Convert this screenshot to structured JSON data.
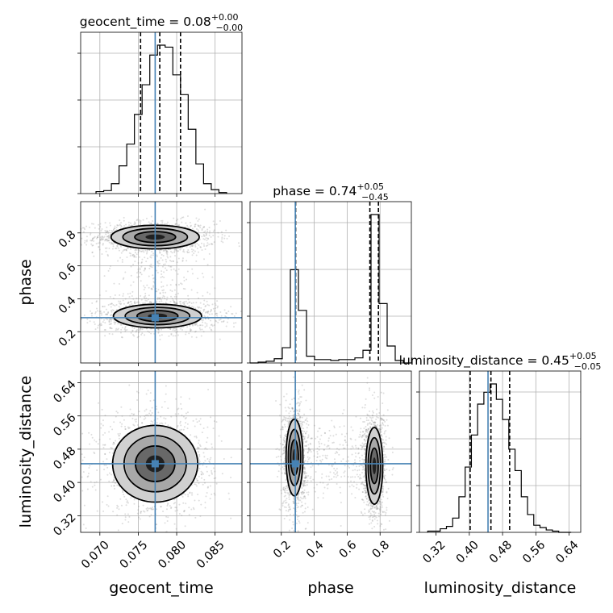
{
  "chart_data": {
    "type": "corner",
    "parameters": [
      "geocent_time",
      "phase",
      "luminosity_distance"
    ],
    "truth": {
      "geocent_time": 0.0772,
      "phase": 0.285,
      "luminosity_distance": 0.445
    },
    "grid": true,
    "titles": [
      {
        "param": "geocent_time",
        "text": "geocent_time = 0.08",
        "sup": "+0.00",
        "sub": "−0.00"
      },
      {
        "param": "phase",
        "text": "phase = 0.74",
        "sup": "+0.05",
        "sub": "−0.45"
      },
      {
        "param": "luminosity_distance",
        "text": "luminosity_distance = 0.45",
        "sup": "+0.05",
        "sub": "−0.05"
      }
    ],
    "axes": {
      "geocent_time": {
        "label": "geocent_time",
        "range": [
          0.0675,
          0.0885
        ],
        "ticks": [
          0.07,
          0.075,
          0.08,
          0.085
        ],
        "tick_labels": [
          "0.070",
          "0.075",
          "0.080",
          "0.085"
        ],
        "quantiles": [
          0.0753,
          0.0778,
          0.0805
        ]
      },
      "phase": {
        "label": "phase",
        "range": [
          0.01,
          0.99
        ],
        "ticks": [
          0.2,
          0.4,
          0.6,
          0.8
        ],
        "tick_labels": [
          "0.2",
          "0.4",
          "0.6",
          "0.8"
        ],
        "quantiles": [
          0.287,
          0.738,
          0.79
        ]
      },
      "luminosity_distance": {
        "label": "luminosity_distance",
        "range": [
          0.28,
          0.668
        ],
        "ticks": [
          0.32,
          0.4,
          0.48,
          0.56,
          0.64
        ],
        "tick_labels": [
          "0.32",
          "0.40",
          "0.48",
          "0.56",
          "0.64"
        ],
        "quantiles": [
          0.402,
          0.452,
          0.497
        ]
      }
    },
    "histograms": {
      "geocent_time": {
        "bin_edges": [
          0.0695,
          0.0705,
          0.0715,
          0.0725,
          0.0735,
          0.0745,
          0.0755,
          0.0765,
          0.0775,
          0.0785,
          0.0795,
          0.0805,
          0.0815,
          0.0825,
          0.0835,
          0.0845,
          0.0855,
          0.0865
        ],
        "counts": [
          2,
          3,
          10,
          28,
          50,
          80,
          110,
          140,
          150,
          148,
          120,
          100,
          65,
          30,
          10,
          4,
          1
        ]
      },
      "phase": {
        "bin_edges": [
          0.01,
          0.059,
          0.108,
          0.157,
          0.206,
          0.255,
          0.304,
          0.353,
          0.402,
          0.451,
          0.5,
          0.549,
          0.598,
          0.647,
          0.696,
          0.745,
          0.794,
          0.843,
          0.892,
          0.941,
          0.99
        ],
        "counts": [
          0,
          1,
          2,
          5,
          18,
          110,
          62,
          8,
          4,
          4,
          3,
          4,
          4,
          6,
          15,
          175,
          70,
          20,
          3,
          0
        ]
      },
      "luminosity_distance": {
        "bin_edges": [
          0.3,
          0.315,
          0.33,
          0.345,
          0.36,
          0.375,
          0.39,
          0.405,
          0.42,
          0.435,
          0.45,
          0.465,
          0.48,
          0.495,
          0.51,
          0.525,
          0.54,
          0.555,
          0.57,
          0.585,
          0.6,
          0.615,
          0.63,
          0.645
        ],
        "counts": [
          1,
          1,
          3,
          5,
          12,
          30,
          55,
          82,
          108,
          118,
          125,
          112,
          95,
          70,
          52,
          30,
          15,
          6,
          4,
          2,
          1,
          0,
          0
        ]
      }
    },
    "modes_2d": {
      "phase_vs_geocent_time": [
        {
          "x": 0.0772,
          "y": 0.775,
          "sx": 0.0028,
          "sy": 0.035
        },
        {
          "x": 0.0775,
          "y": 0.295,
          "sx": 0.0028,
          "sy": 0.035
        }
      ],
      "luminosity_distance_vs_geocent_time": [
        {
          "x": 0.0772,
          "y": 0.445,
          "sx": 0.0027,
          "sy": 0.045
        }
      ],
      "luminosity_distance_vs_phase": [
        {
          "x": 0.28,
          "y": 0.46,
          "sx": 0.025,
          "sy": 0.045
        },
        {
          "x": 0.765,
          "y": 0.44,
          "sx": 0.025,
          "sy": 0.045
        }
      ]
    }
  }
}
